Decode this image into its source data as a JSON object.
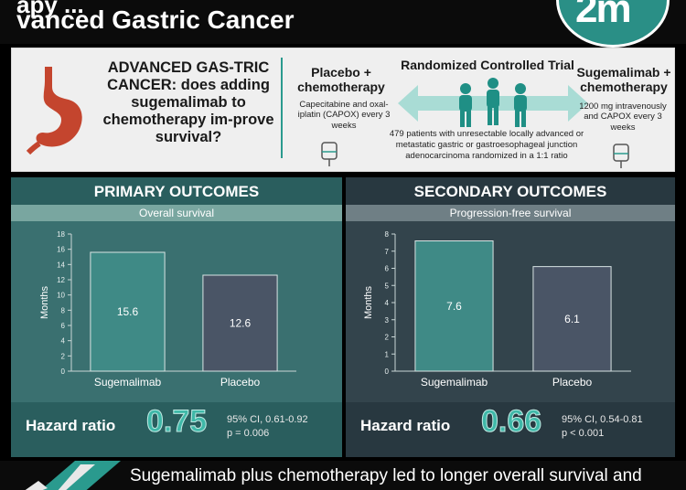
{
  "header": {
    "title_top": "apy ... ",
    "title_main": "vanced Gastric Cancer",
    "logo_text": "2m"
  },
  "info": {
    "question": "ADVANCED GAS-TRIC CANCER: does adding sugemalimab to chemotherapy im-prove survival?",
    "arm_left": {
      "title": "Placebo + chemotherapy",
      "desc": "Capecitabine and oxal-iplatin (CAPOX) every 3 weeks"
    },
    "rct": {
      "title": "Randomized Controlled Trial",
      "desc": "479 patients with unresectable locally advanced or metastatic gastric or gastroesophageal junction adenocarcinoma randomized in a 1:1 ratio"
    },
    "arm_right": {
      "title": "Sugemalimab + chemotherapy",
      "desc": "1200 mg intravenously and CAPOX every 3 weeks"
    },
    "colors": {
      "accent": "#2a9a8e",
      "stomach": "#c4452e"
    },
    "icons": [
      "stomach-icon",
      "iv-bag-icon",
      "people-icon",
      "double-arrow-icon"
    ]
  },
  "primary": {
    "title": "PRIMARY OUTCOMES",
    "subtitle": "Overall survival",
    "hazard_label": "Hazard ratio",
    "hazard_value": "0.75",
    "ci_line1": "95% CI, 0.61-0.92",
    "ci_line2": "p = 0.006"
  },
  "secondary": {
    "title": "SECONDARY OUTCOMES",
    "subtitle": "Progression-free survival",
    "hazard_label": "Hazard ratio",
    "hazard_value": "0.66",
    "ci_line1": "95% CI, 0.54-0.81",
    "ci_line2": "p < 0.001"
  },
  "chart_data": [
    {
      "type": "bar",
      "title": "Overall survival",
      "categories": [
        "Sugemalimab",
        "Placebo"
      ],
      "values": [
        15.6,
        12.6
      ],
      "data_labels": [
        "15.6",
        "12.6"
      ],
      "xlabel": "",
      "ylabel": "Months",
      "ylim": [
        0,
        18
      ],
      "yticks": [
        0,
        2,
        4,
        6,
        8,
        10,
        12,
        14,
        16,
        18
      ],
      "bar_colors": [
        "#3f8a86",
        "#4a5566"
      ],
      "grid": false
    },
    {
      "type": "bar",
      "title": "Progression-free survival",
      "categories": [
        "Sugemalimab",
        "Placebo"
      ],
      "values": [
        7.6,
        6.1
      ],
      "data_labels": [
        "7.6",
        "6.1"
      ],
      "xlabel": "",
      "ylabel": "Months",
      "ylim": [
        0,
        8
      ],
      "yticks": [
        0,
        1,
        2,
        3,
        4,
        5,
        6,
        7,
        8
      ],
      "bar_colors": [
        "#3f8a86",
        "#4a5566"
      ],
      "grid": false
    }
  ],
  "bottom": {
    "conclusion": "Sugemalimab plus chemotherapy led to longer overall survival and"
  }
}
